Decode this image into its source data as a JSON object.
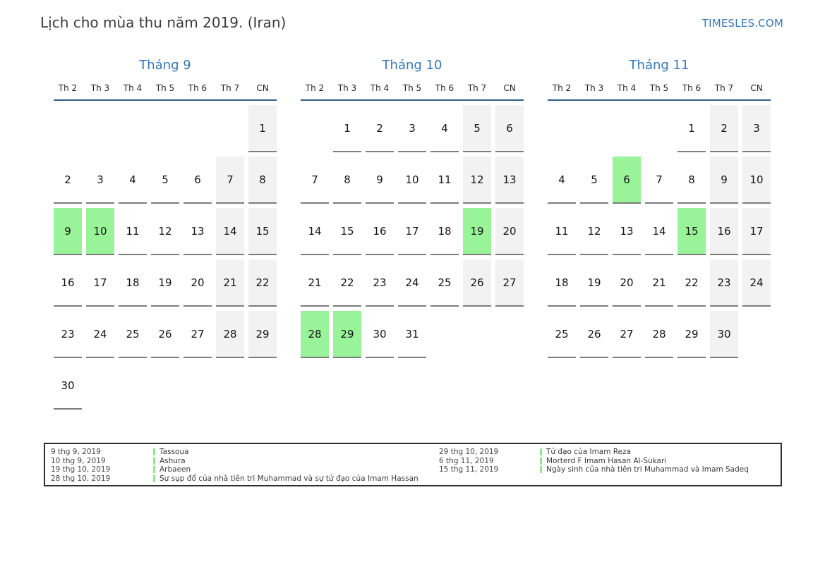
{
  "page": {
    "title": "Lịch cho mùa thu năm 2019. (Iran)",
    "logo": "TIMESLES.COM"
  },
  "colors": {
    "accent_blue": "#3578bd",
    "header_rule_blue": "#2e5f8c",
    "highlight_green": "#99f399",
    "weekend_gray": "#f2f2f2",
    "cell_border_gray": "#7d7d7d",
    "legend_marker_green": "#8ee88e"
  },
  "weekdays": [
    "Th 2",
    "Th 3",
    "Th 4",
    "Th 5",
    "Th 6",
    "Th 7",
    "CN"
  ],
  "months": [
    {
      "title": "Tháng 9",
      "cells": [
        {
          "d": "",
          "t": "e"
        },
        {
          "d": "",
          "t": "e"
        },
        {
          "d": "",
          "t": "e"
        },
        {
          "d": "",
          "t": "e"
        },
        {
          "d": "",
          "t": "e"
        },
        {
          "d": "",
          "t": "e"
        },
        {
          "d": "1",
          "t": "w"
        },
        {
          "d": "2",
          "t": "n"
        },
        {
          "d": "3",
          "t": "n"
        },
        {
          "d": "4",
          "t": "n"
        },
        {
          "d": "5",
          "t": "n"
        },
        {
          "d": "6",
          "t": "n"
        },
        {
          "d": "7",
          "t": "w"
        },
        {
          "d": "8",
          "t": "w"
        },
        {
          "d": "9",
          "t": "h"
        },
        {
          "d": "10",
          "t": "h"
        },
        {
          "d": "11",
          "t": "n"
        },
        {
          "d": "12",
          "t": "n"
        },
        {
          "d": "13",
          "t": "n"
        },
        {
          "d": "14",
          "t": "w"
        },
        {
          "d": "15",
          "t": "w"
        },
        {
          "d": "16",
          "t": "n"
        },
        {
          "d": "17",
          "t": "n"
        },
        {
          "d": "18",
          "t": "n"
        },
        {
          "d": "19",
          "t": "n"
        },
        {
          "d": "20",
          "t": "n"
        },
        {
          "d": "21",
          "t": "w"
        },
        {
          "d": "22",
          "t": "w"
        },
        {
          "d": "23",
          "t": "n"
        },
        {
          "d": "24",
          "t": "n"
        },
        {
          "d": "25",
          "t": "n"
        },
        {
          "d": "26",
          "t": "n"
        },
        {
          "d": "27",
          "t": "n"
        },
        {
          "d": "28",
          "t": "w"
        },
        {
          "d": "29",
          "t": "w"
        },
        {
          "d": "30",
          "t": "n"
        },
        {
          "d": "",
          "t": "e"
        },
        {
          "d": "",
          "t": "e"
        },
        {
          "d": "",
          "t": "e"
        },
        {
          "d": "",
          "t": "e"
        },
        {
          "d": "",
          "t": "e"
        },
        {
          "d": "",
          "t": "e"
        }
      ]
    },
    {
      "title": "Tháng 10",
      "cells": [
        {
          "d": "",
          "t": "e"
        },
        {
          "d": "1",
          "t": "n"
        },
        {
          "d": "2",
          "t": "n"
        },
        {
          "d": "3",
          "t": "n"
        },
        {
          "d": "4",
          "t": "n"
        },
        {
          "d": "5",
          "t": "w"
        },
        {
          "d": "6",
          "t": "w"
        },
        {
          "d": "7",
          "t": "n"
        },
        {
          "d": "8",
          "t": "n"
        },
        {
          "d": "9",
          "t": "n"
        },
        {
          "d": "10",
          "t": "n"
        },
        {
          "d": "11",
          "t": "n"
        },
        {
          "d": "12",
          "t": "w"
        },
        {
          "d": "13",
          "t": "w"
        },
        {
          "d": "14",
          "t": "n"
        },
        {
          "d": "15",
          "t": "n"
        },
        {
          "d": "16",
          "t": "n"
        },
        {
          "d": "17",
          "t": "n"
        },
        {
          "d": "18",
          "t": "n"
        },
        {
          "d": "19",
          "t": "h"
        },
        {
          "d": "20",
          "t": "w"
        },
        {
          "d": "21",
          "t": "n"
        },
        {
          "d": "22",
          "t": "n"
        },
        {
          "d": "23",
          "t": "n"
        },
        {
          "d": "24",
          "t": "n"
        },
        {
          "d": "25",
          "t": "n"
        },
        {
          "d": "26",
          "t": "w"
        },
        {
          "d": "27",
          "t": "w"
        },
        {
          "d": "28",
          "t": "h"
        },
        {
          "d": "29",
          "t": "h"
        },
        {
          "d": "30",
          "t": "n"
        },
        {
          "d": "31",
          "t": "n"
        },
        {
          "d": "",
          "t": "e"
        },
        {
          "d": "",
          "t": "e"
        },
        {
          "d": "",
          "t": "e"
        }
      ]
    },
    {
      "title": "Tháng 11",
      "cells": [
        {
          "d": "",
          "t": "e"
        },
        {
          "d": "",
          "t": "e"
        },
        {
          "d": "",
          "t": "e"
        },
        {
          "d": "",
          "t": "e"
        },
        {
          "d": "1",
          "t": "n"
        },
        {
          "d": "2",
          "t": "w"
        },
        {
          "d": "3",
          "t": "w"
        },
        {
          "d": "4",
          "t": "n"
        },
        {
          "d": "5",
          "t": "n"
        },
        {
          "d": "6",
          "t": "h"
        },
        {
          "d": "7",
          "t": "n"
        },
        {
          "d": "8",
          "t": "n"
        },
        {
          "d": "9",
          "t": "w"
        },
        {
          "d": "10",
          "t": "w"
        },
        {
          "d": "11",
          "t": "n"
        },
        {
          "d": "12",
          "t": "n"
        },
        {
          "d": "13",
          "t": "n"
        },
        {
          "d": "14",
          "t": "n"
        },
        {
          "d": "15",
          "t": "h"
        },
        {
          "d": "16",
          "t": "w"
        },
        {
          "d": "17",
          "t": "w"
        },
        {
          "d": "18",
          "t": "n"
        },
        {
          "d": "19",
          "t": "n"
        },
        {
          "d": "20",
          "t": "n"
        },
        {
          "d": "21",
          "t": "n"
        },
        {
          "d": "22",
          "t": "n"
        },
        {
          "d": "23",
          "t": "w"
        },
        {
          "d": "24",
          "t": "w"
        },
        {
          "d": "25",
          "t": "n"
        },
        {
          "d": "26",
          "t": "n"
        },
        {
          "d": "27",
          "t": "n"
        },
        {
          "d": "28",
          "t": "n"
        },
        {
          "d": "29",
          "t": "n"
        },
        {
          "d": "30",
          "t": "w"
        },
        {
          "d": "",
          "t": "e"
        }
      ]
    }
  ],
  "legend": {
    "columns": [
      {
        "items": [
          {
            "date": "9 thg 9, 2019",
            "label": "Tassoua"
          },
          {
            "date": "10 thg 9, 2019",
            "label": "Ashura"
          },
          {
            "date": "19 thg 10, 2019",
            "label": "Arbaeen"
          },
          {
            "date": "28 thg 10, 2019",
            "label": "Sự sụp đổ của nhà tiên tri Muhammad và sự tử đạo của Imam Hassan"
          }
        ]
      },
      {
        "items": [
          {
            "date": "29 thg 10, 2019",
            "label": "Tử đạo của Imam Reza"
          },
          {
            "date": "6 thg 11, 2019",
            "label": "Morterd F Imam Hasan Al-Sukari"
          },
          {
            "date": "15 thg 11, 2019",
            "label": "Ngày sinh của nhà tiên tri Muhammad và Imam Sadeq"
          }
        ]
      }
    ]
  }
}
